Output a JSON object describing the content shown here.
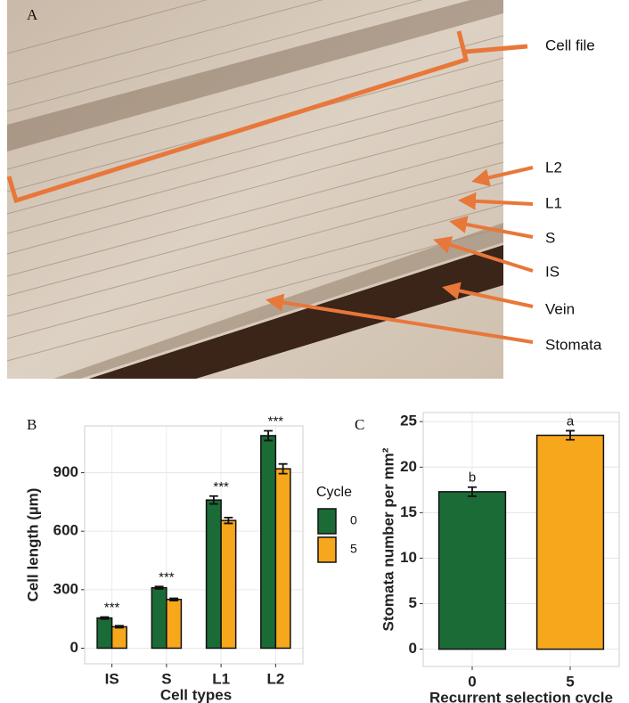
{
  "panel_a": {
    "panel_label": "A",
    "labels": [
      "Cell file",
      "L2",
      "L1",
      "S",
      "IS",
      "Vein",
      "Stomata"
    ]
  },
  "chart_data": [
    {
      "type": "bar",
      "panel_label": "B",
      "categories": [
        "IS",
        "S",
        "L1",
        "L2"
      ],
      "series": [
        {
          "name": "0",
          "color": "#1b6b36",
          "values": [
            155,
            310,
            760,
            1090
          ],
          "errors": [
            5,
            6,
            20,
            25
          ]
        },
        {
          "name": "5",
          "color": "#f7a71b",
          "values": [
            110,
            250,
            655,
            920
          ],
          "errors": [
            5,
            6,
            15,
            25
          ]
        }
      ],
      "annotations": [
        "***",
        "***",
        "***",
        "***"
      ],
      "xlabel": "Cell types",
      "ylabel": "Cell length (µm)",
      "legend_title": "Cycle",
      "ylim": [
        -80,
        1140
      ],
      "yticks": [
        0,
        300,
        600,
        900
      ],
      "grid": true
    },
    {
      "type": "bar",
      "panel_label": "C",
      "categories": [
        "0",
        "5"
      ],
      "values": [
        17.3,
        23.5
      ],
      "errors": [
        0.5,
        0.5
      ],
      "colors": [
        "#1b6b36",
        "#f7a71b"
      ],
      "annotations": [
        "b",
        "a"
      ],
      "xlabel": "Recurrent selection cycle",
      "ylabel": "Stomata number per mm²",
      "ylim": [
        -1.9,
        26
      ],
      "yticks": [
        0,
        5,
        10,
        15,
        20,
        25
      ],
      "grid": true
    }
  ]
}
